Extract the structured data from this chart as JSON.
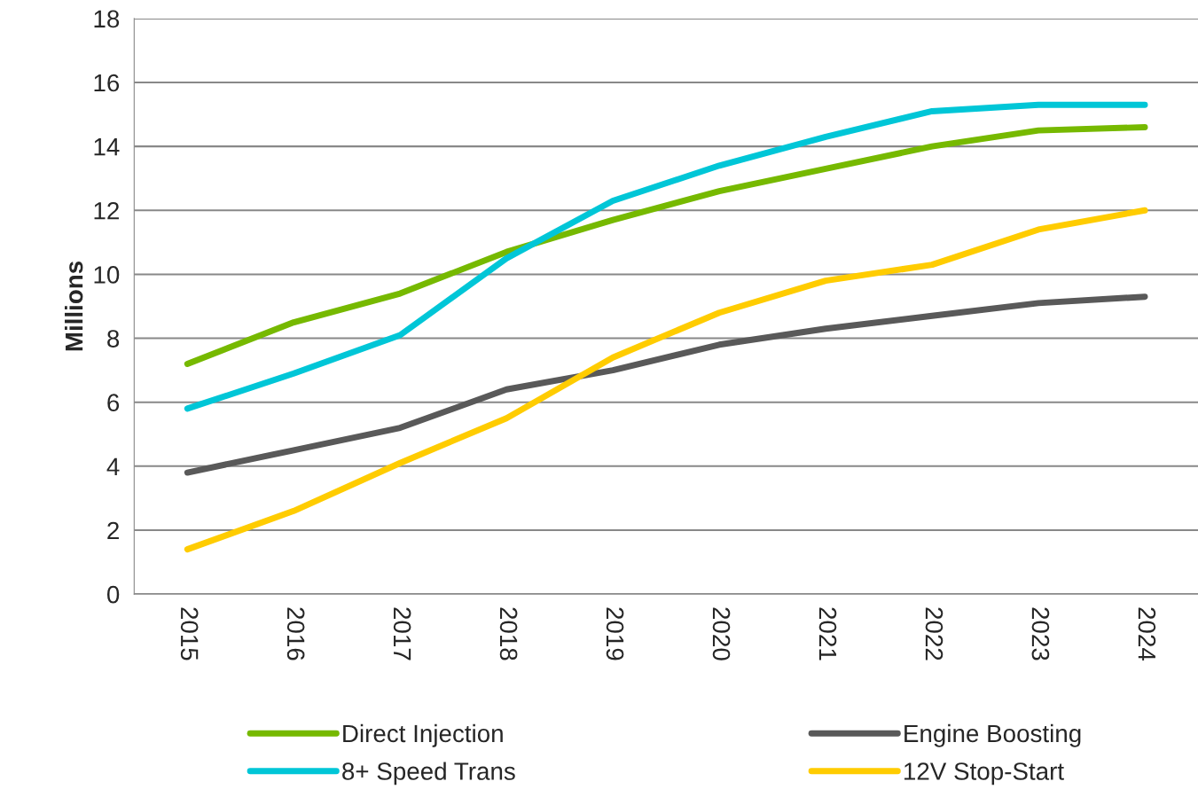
{
  "chart_data": {
    "type": "line",
    "ylabel": "Millions",
    "categories": [
      "2015",
      "2016",
      "2017",
      "2018",
      "2019",
      "2020",
      "2021",
      "2022",
      "2023",
      "2024"
    ],
    "series": [
      {
        "name": "Direct Injection",
        "color": "#76b900",
        "values": [
          7.2,
          8.5,
          9.4,
          10.7,
          11.7,
          12.6,
          13.3,
          14.0,
          14.5,
          14.6
        ]
      },
      {
        "name": "8+ Speed Trans",
        "color": "#00c6d7",
        "values": [
          5.8,
          6.9,
          8.1,
          10.5,
          12.3,
          13.4,
          14.3,
          15.1,
          15.3,
          15.3
        ]
      },
      {
        "name": "Engine Boosting",
        "color": "#595959",
        "values": [
          3.8,
          4.5,
          5.2,
          6.4,
          7.0,
          7.8,
          8.3,
          8.7,
          9.1,
          9.3
        ]
      },
      {
        "name": "12V Stop-Start",
        "color": "#ffcc00",
        "values": [
          1.4,
          2.6,
          4.1,
          5.5,
          7.4,
          8.8,
          9.8,
          10.3,
          11.4,
          12.0
        ]
      }
    ],
    "ylim": [
      0,
      18
    ],
    "yticks": [
      0,
      2,
      4,
      6,
      8,
      10,
      12,
      14,
      16,
      18
    ],
    "grid": "y",
    "legend": "bottom",
    "marker": "none",
    "line_style": "solid"
  }
}
